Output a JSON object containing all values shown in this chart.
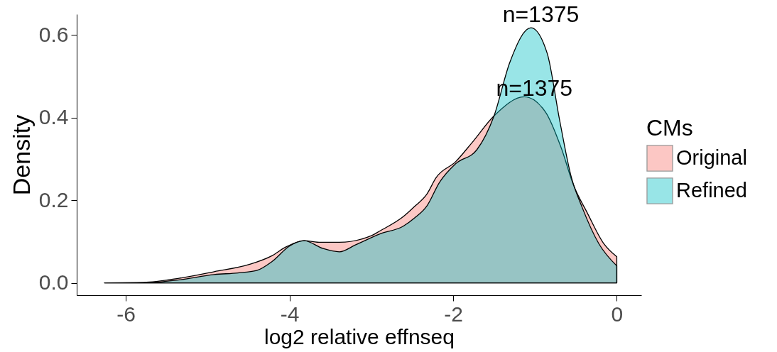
{
  "chart_data": {
    "type": "area",
    "xlabel": "log2 relative effnseq",
    "ylabel": "Density",
    "legend_title": "CMs",
    "legend": "right",
    "grid": false,
    "xlim": [
      -6.6,
      0.3
    ],
    "xticks": [
      -6,
      -4,
      -2,
      0
    ],
    "ylim": [
      -0.03,
      0.65
    ],
    "yticks": [
      {
        "value": 0,
        "label": "0.0"
      },
      0.2,
      0.4,
      0.6
    ],
    "annotations": [
      "n=1375",
      "n=1375"
    ],
    "series": [
      {
        "name": "Original",
        "color": "#f8766d",
        "x": [
          -6.26,
          -5.78,
          -5.35,
          -4.92,
          -4.5,
          -4.21,
          -4.05,
          -3.82,
          -3.62,
          -3.39,
          -2.99,
          -2.9,
          -2.61,
          -2.47,
          -2.32,
          -2.21,
          -1.97,
          -1.77,
          -1.5,
          -1.13,
          -0.87,
          -0.68,
          -0.53,
          -0.36,
          -0.16,
          0
        ],
        "values": [
          0,
          0.001,
          0.011,
          0.027,
          0.044,
          0.066,
          0.086,
          0.102,
          0.098,
          0.098,
          0.115,
          0.125,
          0.16,
          0.185,
          0.215,
          0.254,
          0.293,
          0.339,
          0.404,
          0.45,
          0.413,
          0.327,
          0.237,
          0.169,
          0.095,
          0.063
        ]
      },
      {
        "name": "Refined",
        "color": "#00bfc4",
        "x": [
          -6.26,
          -5.78,
          -5.35,
          -4.92,
          -4.63,
          -4.4,
          -4.21,
          -4.0,
          -3.82,
          -3.59,
          -3.39,
          -3.19,
          -2.9,
          -2.61,
          -2.47,
          -2.32,
          -2.17,
          -1.97,
          -1.71,
          -1.5,
          -1.31,
          -1.05,
          -0.85,
          -0.7,
          -0.56,
          -0.42,
          -0.22,
          0
        ],
        "values": [
          0,
          0,
          0.007,
          0.02,
          0.024,
          0.03,
          0.052,
          0.089,
          0.102,
          0.083,
          0.075,
          0.092,
          0.118,
          0.137,
          0.157,
          0.186,
          0.242,
          0.288,
          0.322,
          0.404,
          0.532,
          0.617,
          0.555,
          0.395,
          0.259,
          0.181,
          0.095,
          0.041
        ]
      }
    ]
  }
}
